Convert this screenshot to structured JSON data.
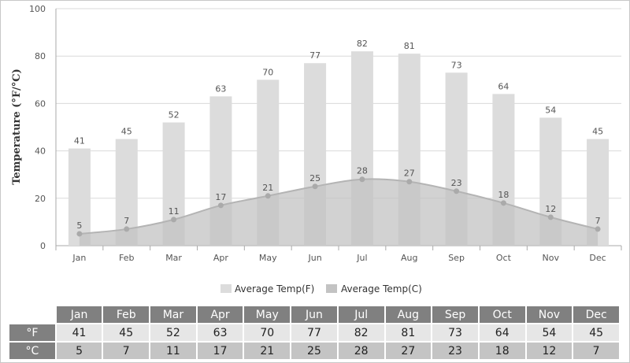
{
  "chart_data": {
    "type": "bar",
    "categories": [
      "Jan",
      "Feb",
      "Mar",
      "Apr",
      "May",
      "Jun",
      "Jul",
      "Aug",
      "Sep",
      "Oct",
      "Nov",
      "Dec"
    ],
    "series": [
      {
        "name": "Average Temp(F)",
        "kind": "bar",
        "values": [
          41,
          45,
          52,
          63,
          70,
          77,
          82,
          81,
          73,
          64,
          54,
          45
        ]
      },
      {
        "name": "Average Temp(C)",
        "kind": "area",
        "values": [
          5,
          7,
          11,
          17,
          21,
          25,
          28,
          27,
          23,
          18,
          12,
          7
        ]
      }
    ],
    "ylabel": "Temperature (°F/°C)",
    "ylim": [
      0,
      100
    ],
    "yticks": [
      "0",
      "20",
      "40",
      "60",
      "80",
      "100"
    ],
    "grid": true,
    "legend_position": "bottom-center",
    "colors": {
      "bar": "#dcdcdc",
      "area": "#c3c3c3",
      "line": "#b4b4b4",
      "marker": "#aaaaaa"
    }
  },
  "table": {
    "corner": "",
    "months": [
      "Jan",
      "Feb",
      "Mar",
      "Apr",
      "May",
      "Jun",
      "Jul",
      "Aug",
      "Sep",
      "Oct",
      "Nov",
      "Dec"
    ],
    "rows": [
      {
        "label": "°F",
        "values": [
          "41",
          "45",
          "52",
          "63",
          "70",
          "77",
          "82",
          "81",
          "73",
          "64",
          "54",
          "45"
        ]
      },
      {
        "label": "°C",
        "values": [
          "5",
          "7",
          "11",
          "17",
          "21",
          "25",
          "28",
          "27",
          "23",
          "18",
          "12",
          "7"
        ]
      }
    ]
  }
}
